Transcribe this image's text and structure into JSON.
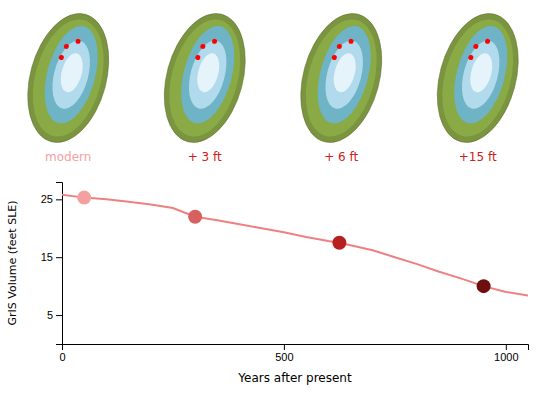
{
  "chart_data": {
    "type": "line",
    "xlabel": "Years after present",
    "ylabel": "GrIS Volume (feet SLE)",
    "xlim": [
      0,
      1050
    ],
    "ylim": [
      0,
      28
    ],
    "xticks": [
      0,
      500,
      1000
    ],
    "yticks": [
      5,
      15,
      25
    ],
    "series": [
      {
        "type": "line",
        "color": "#f08080",
        "x": [
          0,
          50,
          100,
          150,
          200,
          250,
          300,
          350,
          400,
          450,
          500,
          550,
          600,
          625,
          700,
          750,
          800,
          850,
          900,
          950,
          1000,
          1050
        ],
        "values": [
          25.8,
          25.3,
          25.0,
          24.6,
          24.1,
          23.5,
          22.0,
          21.4,
          20.7,
          20.0,
          19.3,
          18.5,
          17.8,
          17.5,
          16.2,
          15.0,
          13.8,
          12.5,
          11.3,
          10.0,
          9.0,
          8.4
        ]
      },
      {
        "type": "scatter",
        "colors": [
          "#f4a0a0",
          "#d96060",
          "#b82020",
          "#6e0f0f"
        ],
        "x": [
          50,
          300,
          625,
          950
        ],
        "values": [
          25.3,
          22.0,
          17.5,
          10.0
        ]
      }
    ],
    "annotations": [
      {
        "text": "modern",
        "color": "#f4a0a0"
      },
      {
        "text": "+ 3 ft",
        "color": "#cc2020"
      },
      {
        "text": "+ 6 ft",
        "color": "#cc2020"
      },
      {
        "text": "+15 ft",
        "color": "#cc2020"
      }
    ]
  }
}
